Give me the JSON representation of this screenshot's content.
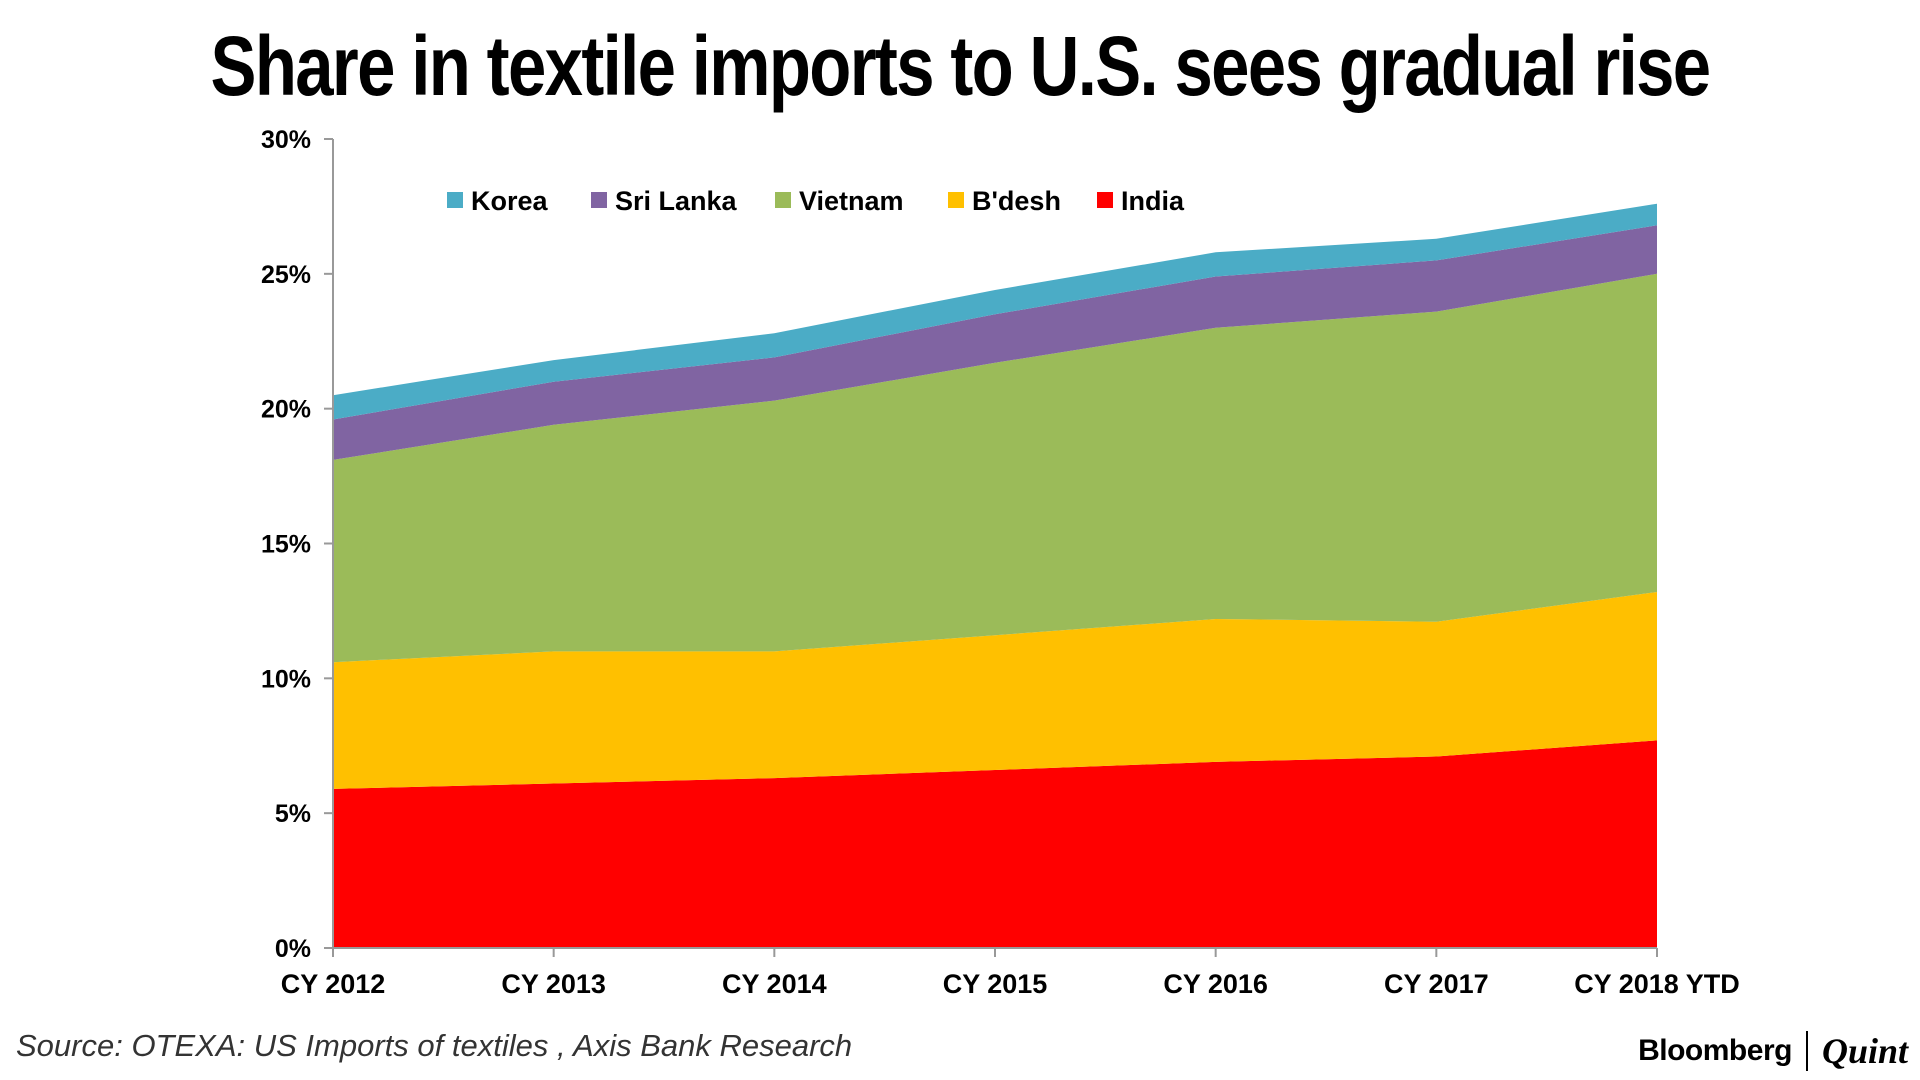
{
  "title": "Share in textile imports to U.S. sees gradual rise",
  "source": "Source: OTEXA: US Imports of textiles , Axis Bank Research",
  "brand": {
    "left": "Bloomberg",
    "right": "Quint"
  },
  "chart_data": {
    "type": "area",
    "stacked": true,
    "categories": [
      "CY 2012",
      "CY 2013",
      "CY 2014",
      "CY 2015",
      "CY 2016",
      "CY 2017",
      "CY 2018 YTD"
    ],
    "series": [
      {
        "name": "India",
        "color": "#ff0000",
        "values": [
          5.9,
          6.1,
          6.3,
          6.6,
          6.9,
          7.1,
          7.7
        ]
      },
      {
        "name": "B'desh",
        "color": "#ffc000",
        "values": [
          4.7,
          4.9,
          4.7,
          5.0,
          5.3,
          5.0,
          5.5
        ]
      },
      {
        "name": "Vietnam",
        "color": "#9bbb59",
        "values": [
          7.5,
          8.4,
          9.3,
          10.1,
          10.8,
          11.5,
          11.8
        ]
      },
      {
        "name": "Sri Lanka",
        "color": "#8064a2",
        "values": [
          1.5,
          1.6,
          1.6,
          1.8,
          1.9,
          1.9,
          1.8
        ]
      },
      {
        "name": "Korea",
        "color": "#4bacc6",
        "values": [
          0.9,
          0.8,
          0.9,
          0.9,
          0.9,
          0.8,
          0.8
        ]
      }
    ],
    "legend_order": [
      "Korea",
      "Sri Lanka",
      "Vietnam",
      "B'desh",
      "India"
    ],
    "legend_position": "top-center",
    "ylim": [
      0,
      30
    ],
    "yticks": [
      0,
      5,
      10,
      15,
      20,
      25,
      30
    ],
    "ytick_labels": [
      "0%",
      "5%",
      "10%",
      "15%",
      "20%",
      "25%",
      "30%"
    ],
    "grid": false
  }
}
